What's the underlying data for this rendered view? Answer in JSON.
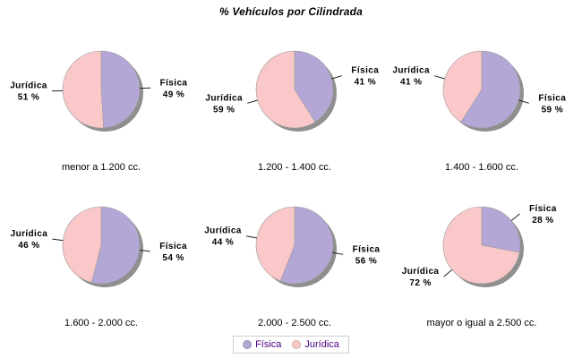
{
  "title": "% Vehículos por Cilindrada",
  "legend": {
    "items": [
      {
        "label": "Física",
        "color": "#b4a7d6"
      },
      {
        "label": "Jurídica",
        "color": "#fac8c8"
      }
    ]
  },
  "colors": {
    "fisica": "#b4a7d6",
    "juridica": "#fac8c8",
    "shadow": "#8f8f8f",
    "outline": "#9b9b9b",
    "leader_line": "#222222",
    "label_text": "#000000",
    "category_text": "#000000",
    "legend_text": "#4b0082",
    "legend_border": "#cccccc",
    "background": "#ffffff"
  },
  "chart_data": {
    "type": "pie",
    "title": "% Vehículos por Cilindrada",
    "series_names": [
      "Física",
      "Jurídica"
    ],
    "value_suffix": " %",
    "legend_position": "bottom",
    "start_angle": "top",
    "direction": "clockwise",
    "pies": [
      {
        "category": "menor a 1.200 cc.",
        "slices": [
          {
            "name": "Física",
            "pct": 49
          },
          {
            "name": "Jurídica",
            "pct": 51
          }
        ]
      },
      {
        "category": "1.200 - 1.400 cc.",
        "slices": [
          {
            "name": "Física",
            "pct": 41
          },
          {
            "name": "Jurídica",
            "pct": 59
          }
        ]
      },
      {
        "category": "1.400 - 1.600 cc.",
        "slices": [
          {
            "name": "Física",
            "pct": 59
          },
          {
            "name": "Jurídica",
            "pct": 41
          }
        ]
      },
      {
        "category": "1.600 - 2.000 cc.",
        "slices": [
          {
            "name": "Física",
            "pct": 54
          },
          {
            "name": "Jurídica",
            "pct": 46
          }
        ]
      },
      {
        "category": "2.000 - 2.500 cc.",
        "slices": [
          {
            "name": "Física",
            "pct": 56
          },
          {
            "name": "Jurídica",
            "pct": 44
          }
        ]
      },
      {
        "category": "mayor o igual a 2.500 cc.",
        "slices": [
          {
            "name": "Física",
            "pct": 28
          },
          {
            "name": "Jurídica",
            "pct": 72
          }
        ]
      }
    ]
  }
}
